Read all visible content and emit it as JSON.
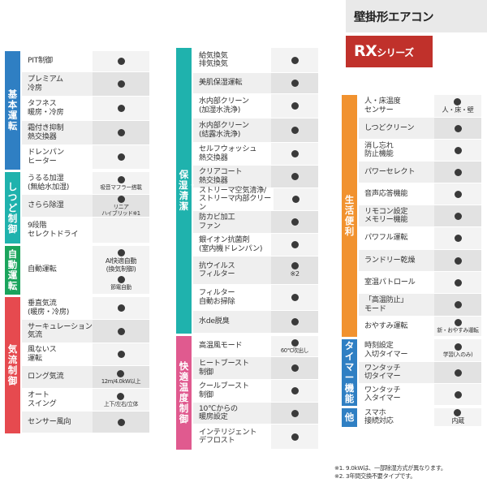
{
  "header": {
    "title": "壁掛形エアコン",
    "series_main": "RX",
    "series_suffix": "シリーズ"
  },
  "colors": {
    "blue": "#2f7fc3",
    "teal": "#1fb2ad",
    "green": "#1aa45c",
    "red": "#e64a4f",
    "pink": "#e05a8f",
    "orange": "#f1922f",
    "brand": "#c0312b"
  },
  "left_groups": [
    {
      "label": "基本運転",
      "color": "#2f7fc3",
      "rows": [
        {
          "name": "PIT制御",
          "value": "●"
        },
        {
          "name": "プレミアム\n冷房",
          "value": "●"
        },
        {
          "name": "タフネス\n暖房・冷房",
          "value": "●"
        },
        {
          "name": "霜付き抑制\n熱交換器",
          "value": "●"
        },
        {
          "name": "ドレンパン\nヒーター",
          "value": "●"
        }
      ]
    },
    {
      "label": "しつど制御",
      "color": "#1fb2ad",
      "rows": [
        {
          "name": "うるる加湿\n(無給水加湿)",
          "value": "●",
          "note": "吸音マフラー搭載"
        },
        {
          "name": "さらら除湿",
          "value": "●",
          "note": "リニア\nハイブリッド※1"
        },
        {
          "name": "9段階\nセレクトドライ",
          "value": ""
        }
      ]
    },
    {
      "label": "自動運転",
      "color": "#1aa45c",
      "rows": [
        {
          "name": "自動運転",
          "value": "●",
          "note": "AI快適自動\n(換気制御)",
          "value2": "●",
          "note2": "節電自動"
        }
      ]
    },
    {
      "label": "気流制御",
      "color": "#e64a4f",
      "rows": [
        {
          "name": "垂直気流\n(暖房・冷房)",
          "value": "●"
        },
        {
          "name": "サーキュレーション\n気流",
          "value": "●"
        },
        {
          "name": "風ないス\n運転",
          "value": "●"
        },
        {
          "name": "ロング気流",
          "value": "●",
          "note": "12m/4.0kW以上"
        },
        {
          "name": "オート\nスイング",
          "value": "●",
          "note": "上下/左右/立体"
        },
        {
          "name": "センサー風向",
          "value": "●"
        }
      ]
    }
  ],
  "middle_groups": [
    {
      "label": "保湿・清潔",
      "color": "#1fb2ad",
      "rows": [
        {
          "name": "給気換気\n排気換気",
          "value": "●"
        },
        {
          "name": "美肌保湿運転",
          "value": "●"
        },
        {
          "name": "水内部クリーン\n(加湿水洗浄)",
          "value": "●"
        },
        {
          "name": "水内部クリーン\n(結露水洗浄)",
          "value": "●"
        },
        {
          "name": "セルフウォッシュ\n熱交換器",
          "value": "●"
        },
        {
          "name": "クリアコート\n熱交換器",
          "value": "●"
        },
        {
          "name": "ストリーマ空気清浄/\nストリーマ内部クリーン",
          "value": "●"
        },
        {
          "name": "防カビ加工\nファン",
          "value": "●"
        },
        {
          "name": "銀イオン抗菌剤\n(室内機ドレンパン)",
          "value": "●"
        },
        {
          "name": "抗ウイルス\nフィルター",
          "value": "●",
          "note": "※2"
        },
        {
          "name": "フィルター\n自動お掃除",
          "value": "●"
        },
        {
          "name": "水de脱臭",
          "value": "●"
        }
      ]
    },
    {
      "label": "快適温度制御",
      "color": "#e05a8f",
      "rows": [
        {
          "name": "高温風モード",
          "value": "●",
          "note": "60℃吹出し"
        },
        {
          "name": "ヒートブースト\n制御",
          "value": "●"
        },
        {
          "name": "クールブースト\n制御",
          "value": "●"
        },
        {
          "name": "10℃からの\n暖房設定",
          "value": "●"
        },
        {
          "name": "インテリジェント\nデフロスト",
          "value": "●"
        }
      ]
    }
  ],
  "right_groups": [
    {
      "label": "生活便利",
      "color": "#f1922f",
      "rows": [
        {
          "name": "人・床温度\nセンサー",
          "value": "●",
          "note": "人・床・壁"
        },
        {
          "name": "しつどクリーン",
          "value": "●"
        },
        {
          "name": "消し忘れ\n防止機能",
          "value": "●"
        },
        {
          "name": "パワーセレクト",
          "value": "●"
        },
        {
          "name": "音声応答機能",
          "value": "●"
        },
        {
          "name": "リモコン設定\nメモリー機能",
          "value": "●"
        },
        {
          "name": "パワフル運転",
          "value": "●"
        },
        {
          "name": "ランドリー乾燥",
          "value": "●"
        },
        {
          "name": "室温パトロール",
          "value": "●"
        },
        {
          "name": "「高温防止」\nモード",
          "value": "●"
        },
        {
          "name": "おやすみ運転",
          "value": "●",
          "note": "新・おやすみ運転"
        }
      ]
    },
    {
      "label": "タイマー機能",
      "color": "#2f7fc3",
      "rows": [
        {
          "name": "時刻設定\n入切タイマー",
          "value": "●",
          "note": "学習(入のみ)"
        },
        {
          "name": "ワンタッチ\n切タイマー",
          "value": "●"
        },
        {
          "name": "ワンタッチ\n入タイマー",
          "value": "●"
        }
      ]
    },
    {
      "label": "他",
      "color": "#2f7fc3",
      "rows": [
        {
          "name": "スマホ\n接続対応",
          "value": "●",
          "note": "内蔵"
        }
      ]
    }
  ],
  "footnotes": [
    "※1. 9.0kWは、一部除湿方式が異なります。",
    "※2. 3年間交換不要タイプです。"
  ]
}
